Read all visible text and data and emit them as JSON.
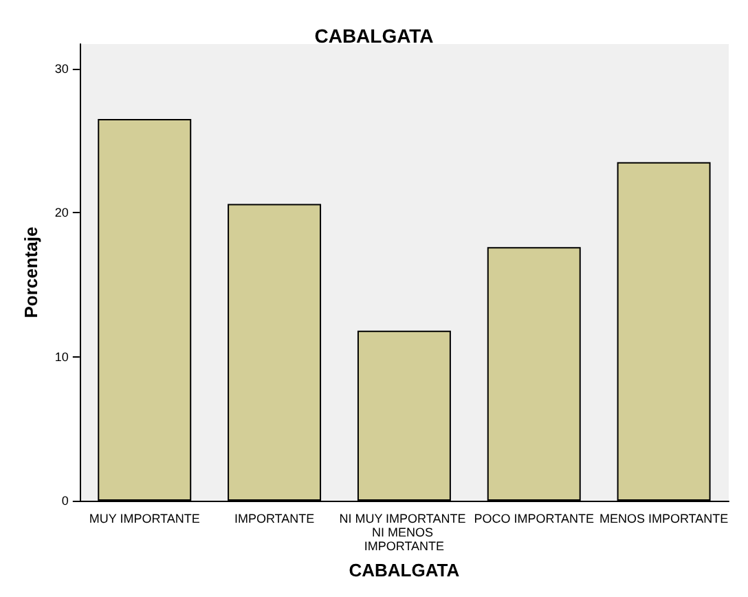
{
  "chart_data": {
    "type": "bar",
    "title": "CABALGATA",
    "xlabel": "CABALGATA",
    "ylabel": "Porcentaje",
    "categories": [
      "MUY IMPORTANTE",
      "IMPORTANTE",
      "NI MUY IMPORTANTE NI MENOS IMPORTANTE",
      "POCO IMPORTANTE",
      "MENOS IMPORTANTE"
    ],
    "values": [
      26.5,
      20.6,
      11.8,
      17.6,
      23.5
    ],
    "color": "#d3ce97",
    "ylim": [
      0,
      31.7
    ],
    "yticks": [
      0,
      10,
      20,
      30
    ],
    "grid": false
  }
}
